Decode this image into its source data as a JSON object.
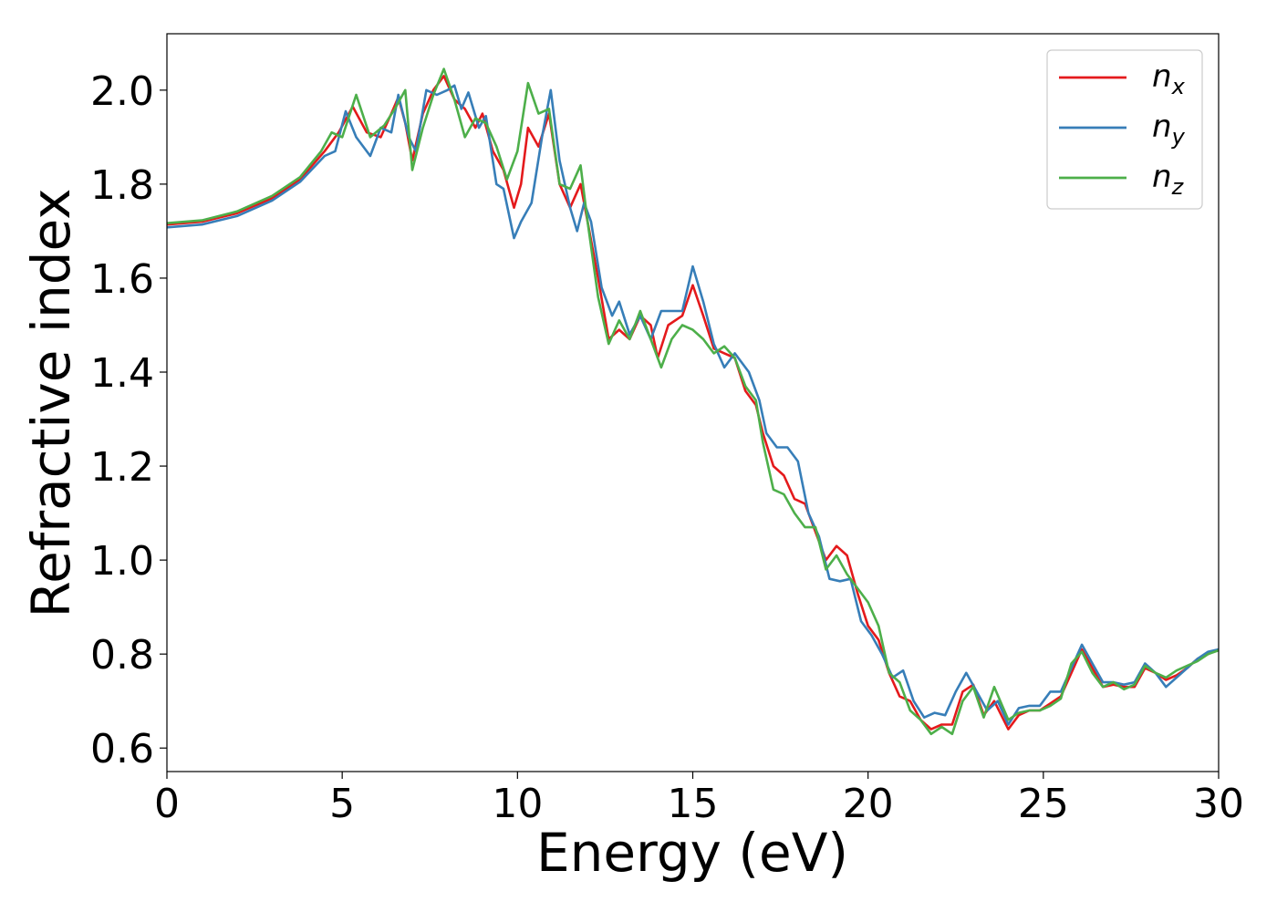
{
  "chart_data": {
    "type": "line",
    "title": "",
    "xlabel": "Energy (eV)",
    "ylabel": "Refractive index",
    "xlim": [
      0,
      30
    ],
    "ylim": [
      0.55,
      2.12
    ],
    "xticks": [
      0,
      5,
      10,
      15,
      20,
      25,
      30
    ],
    "yticks": [
      0.6,
      0.8,
      1.0,
      1.2,
      1.4,
      1.6,
      1.8,
      2.0
    ],
    "ytick_labels": [
      "0.6",
      "0.8",
      "1.0",
      "1.2",
      "1.4",
      "1.6",
      "1.8",
      "2.0"
    ],
    "grid": false,
    "legend_position": "top-right",
    "series": [
      {
        "name": "n_x",
        "label_main": "n",
        "label_sub": "x",
        "color": "#e41a1c",
        "points": [
          [
            0,
            1.714
          ],
          [
            1,
            1.72
          ],
          [
            2,
            1.738
          ],
          [
            3,
            1.77
          ],
          [
            3.8,
            1.81
          ],
          [
            4.5,
            1.87
          ],
          [
            4.9,
            1.91
          ],
          [
            5.3,
            1.965
          ],
          [
            5.7,
            1.91
          ],
          [
            6.1,
            1.9
          ],
          [
            6.4,
            1.95
          ],
          [
            6.6,
            1.985
          ],
          [
            6.8,
            1.93
          ],
          [
            7.0,
            1.85
          ],
          [
            7.3,
            1.95
          ],
          [
            7.6,
            2.0
          ],
          [
            7.9,
            2.03
          ],
          [
            8.2,
            1.98
          ],
          [
            8.5,
            1.96
          ],
          [
            8.8,
            1.92
          ],
          [
            9.0,
            1.95
          ],
          [
            9.3,
            1.87
          ],
          [
            9.6,
            1.83
          ],
          [
            9.9,
            1.75
          ],
          [
            10.1,
            1.8
          ],
          [
            10.3,
            1.92
          ],
          [
            10.6,
            1.88
          ],
          [
            10.9,
            1.95
          ],
          [
            11.2,
            1.8
          ],
          [
            11.5,
            1.75
          ],
          [
            11.8,
            1.8
          ],
          [
            12.0,
            1.72
          ],
          [
            12.3,
            1.6
          ],
          [
            12.6,
            1.47
          ],
          [
            12.9,
            1.49
          ],
          [
            13.2,
            1.47
          ],
          [
            13.5,
            1.52
          ],
          [
            13.8,
            1.5
          ],
          [
            14.0,
            1.43
          ],
          [
            14.3,
            1.5
          ],
          [
            14.7,
            1.52
          ],
          [
            15.0,
            1.585
          ],
          [
            15.3,
            1.52
          ],
          [
            15.6,
            1.45
          ],
          [
            15.9,
            1.44
          ],
          [
            16.2,
            1.43
          ],
          [
            16.5,
            1.36
          ],
          [
            16.8,
            1.33
          ],
          [
            17.0,
            1.27
          ],
          [
            17.3,
            1.2
          ],
          [
            17.6,
            1.18
          ],
          [
            17.9,
            1.13
          ],
          [
            18.2,
            1.12
          ],
          [
            18.5,
            1.06
          ],
          [
            18.8,
            1.0
          ],
          [
            19.1,
            1.03
          ],
          [
            19.4,
            1.01
          ],
          [
            19.7,
            0.93
          ],
          [
            20.0,
            0.86
          ],
          [
            20.3,
            0.83
          ],
          [
            20.6,
            0.76
          ],
          [
            20.9,
            0.71
          ],
          [
            21.2,
            0.7
          ],
          [
            21.5,
            0.66
          ],
          [
            21.8,
            0.64
          ],
          [
            22.1,
            0.65
          ],
          [
            22.4,
            0.65
          ],
          [
            22.7,
            0.72
          ],
          [
            23.0,
            0.735
          ],
          [
            23.3,
            0.67
          ],
          [
            23.6,
            0.7
          ],
          [
            24.0,
            0.64
          ],
          [
            24.3,
            0.67
          ],
          [
            24.6,
            0.68
          ],
          [
            24.9,
            0.68
          ],
          [
            25.2,
            0.695
          ],
          [
            25.5,
            0.71
          ],
          [
            25.8,
            0.76
          ],
          [
            26.1,
            0.81
          ],
          [
            26.4,
            0.77
          ],
          [
            26.7,
            0.73
          ],
          [
            27.0,
            0.735
          ],
          [
            27.3,
            0.73
          ],
          [
            27.6,
            0.73
          ],
          [
            27.9,
            0.77
          ],
          [
            28.2,
            0.76
          ],
          [
            28.5,
            0.745
          ],
          [
            28.8,
            0.755
          ],
          [
            29.1,
            0.77
          ],
          [
            29.4,
            0.79
          ],
          [
            29.7,
            0.8
          ],
          [
            30,
            0.81
          ]
        ]
      },
      {
        "name": "n_y",
        "label_main": "n",
        "label_sub": "y",
        "color": "#377eb8",
        "points": [
          [
            0,
            1.708
          ],
          [
            1,
            1.714
          ],
          [
            2,
            1.732
          ],
          [
            3,
            1.765
          ],
          [
            3.8,
            1.805
          ],
          [
            4.5,
            1.86
          ],
          [
            4.8,
            1.87
          ],
          [
            5.1,
            1.955
          ],
          [
            5.4,
            1.9
          ],
          [
            5.8,
            1.86
          ],
          [
            6.1,
            1.92
          ],
          [
            6.4,
            1.91
          ],
          [
            6.6,
            1.99
          ],
          [
            6.9,
            1.9
          ],
          [
            7.1,
            1.87
          ],
          [
            7.4,
            2.0
          ],
          [
            7.7,
            1.99
          ],
          [
            8.0,
            2.0
          ],
          [
            8.2,
            2.01
          ],
          [
            8.4,
            1.96
          ],
          [
            8.6,
            1.995
          ],
          [
            8.9,
            1.92
          ],
          [
            9.1,
            1.945
          ],
          [
            9.4,
            1.8
          ],
          [
            9.6,
            1.79
          ],
          [
            9.9,
            1.685
          ],
          [
            10.1,
            1.72
          ],
          [
            10.4,
            1.76
          ],
          [
            10.7,
            1.9
          ],
          [
            10.95,
            2.0
          ],
          [
            11.2,
            1.85
          ],
          [
            11.5,
            1.75
          ],
          [
            11.7,
            1.7
          ],
          [
            11.9,
            1.76
          ],
          [
            12.1,
            1.72
          ],
          [
            12.4,
            1.58
          ],
          [
            12.7,
            1.52
          ],
          [
            12.9,
            1.55
          ],
          [
            13.2,
            1.48
          ],
          [
            13.5,
            1.52
          ],
          [
            13.8,
            1.47
          ],
          [
            14.1,
            1.53
          ],
          [
            14.4,
            1.53
          ],
          [
            14.7,
            1.53
          ],
          [
            15.0,
            1.625
          ],
          [
            15.3,
            1.55
          ],
          [
            15.6,
            1.46
          ],
          [
            15.9,
            1.41
          ],
          [
            16.2,
            1.44
          ],
          [
            16.6,
            1.4
          ],
          [
            16.9,
            1.34
          ],
          [
            17.1,
            1.27
          ],
          [
            17.4,
            1.24
          ],
          [
            17.7,
            1.24
          ],
          [
            18.0,
            1.21
          ],
          [
            18.3,
            1.1
          ],
          [
            18.6,
            1.05
          ],
          [
            18.9,
            0.96
          ],
          [
            19.2,
            0.955
          ],
          [
            19.5,
            0.96
          ],
          [
            19.8,
            0.87
          ],
          [
            20.1,
            0.84
          ],
          [
            20.4,
            0.8
          ],
          [
            20.7,
            0.75
          ],
          [
            21.0,
            0.765
          ],
          [
            21.3,
            0.7
          ],
          [
            21.6,
            0.665
          ],
          [
            21.9,
            0.675
          ],
          [
            22.2,
            0.67
          ],
          [
            22.5,
            0.72
          ],
          [
            22.8,
            0.76
          ],
          [
            23.1,
            0.72
          ],
          [
            23.4,
            0.68
          ],
          [
            23.7,
            0.7
          ],
          [
            24.0,
            0.65
          ],
          [
            24.3,
            0.685
          ],
          [
            24.6,
            0.69
          ],
          [
            24.9,
            0.69
          ],
          [
            25.2,
            0.72
          ],
          [
            25.5,
            0.72
          ],
          [
            25.8,
            0.77
          ],
          [
            26.1,
            0.82
          ],
          [
            26.4,
            0.78
          ],
          [
            26.7,
            0.74
          ],
          [
            27.0,
            0.74
          ],
          [
            27.3,
            0.735
          ],
          [
            27.6,
            0.74
          ],
          [
            27.9,
            0.78
          ],
          [
            28.2,
            0.76
          ],
          [
            28.5,
            0.73
          ],
          [
            28.8,
            0.75
          ],
          [
            29.1,
            0.77
          ],
          [
            29.4,
            0.79
          ],
          [
            29.7,
            0.805
          ],
          [
            30,
            0.81
          ]
        ]
      },
      {
        "name": "n_z",
        "label_main": "n",
        "label_sub": "z",
        "color": "#4daf4a",
        "points": [
          [
            0,
            1.717
          ],
          [
            1,
            1.723
          ],
          [
            2,
            1.742
          ],
          [
            3,
            1.775
          ],
          [
            3.8,
            1.815
          ],
          [
            4.4,
            1.87
          ],
          [
            4.7,
            1.91
          ],
          [
            5.0,
            1.9
          ],
          [
            5.4,
            1.99
          ],
          [
            5.8,
            1.9
          ],
          [
            6.2,
            1.925
          ],
          [
            6.5,
            1.96
          ],
          [
            6.8,
            2.0
          ],
          [
            7.0,
            1.83
          ],
          [
            7.3,
            1.92
          ],
          [
            7.6,
            1.99
          ],
          [
            7.9,
            2.045
          ],
          [
            8.2,
            1.98
          ],
          [
            8.5,
            1.9
          ],
          [
            8.8,
            1.94
          ],
          [
            9.1,
            1.93
          ],
          [
            9.4,
            1.88
          ],
          [
            9.7,
            1.81
          ],
          [
            10.0,
            1.87
          ],
          [
            10.3,
            2.015
          ],
          [
            10.6,
            1.95
          ],
          [
            10.9,
            1.96
          ],
          [
            11.2,
            1.8
          ],
          [
            11.5,
            1.79
          ],
          [
            11.8,
            1.84
          ],
          [
            12.0,
            1.72
          ],
          [
            12.3,
            1.56
          ],
          [
            12.6,
            1.46
          ],
          [
            12.9,
            1.51
          ],
          [
            13.2,
            1.47
          ],
          [
            13.5,
            1.53
          ],
          [
            13.8,
            1.47
          ],
          [
            14.1,
            1.41
          ],
          [
            14.4,
            1.47
          ],
          [
            14.7,
            1.5
          ],
          [
            15.0,
            1.49
          ],
          [
            15.3,
            1.47
          ],
          [
            15.6,
            1.44
          ],
          [
            15.9,
            1.455
          ],
          [
            16.2,
            1.43
          ],
          [
            16.5,
            1.37
          ],
          [
            16.8,
            1.34
          ],
          [
            17.0,
            1.25
          ],
          [
            17.3,
            1.15
          ],
          [
            17.6,
            1.14
          ],
          [
            17.9,
            1.1
          ],
          [
            18.2,
            1.07
          ],
          [
            18.5,
            1.07
          ],
          [
            18.8,
            0.98
          ],
          [
            19.1,
            1.01
          ],
          [
            19.4,
            0.97
          ],
          [
            19.7,
            0.94
          ],
          [
            20.0,
            0.91
          ],
          [
            20.3,
            0.86
          ],
          [
            20.6,
            0.76
          ],
          [
            20.9,
            0.74
          ],
          [
            21.2,
            0.68
          ],
          [
            21.5,
            0.66
          ],
          [
            21.8,
            0.63
          ],
          [
            22.1,
            0.645
          ],
          [
            22.4,
            0.63
          ],
          [
            22.7,
            0.7
          ],
          [
            23.0,
            0.73
          ],
          [
            23.3,
            0.665
          ],
          [
            23.6,
            0.73
          ],
          [
            24.0,
            0.66
          ],
          [
            24.3,
            0.675
          ],
          [
            24.6,
            0.68
          ],
          [
            24.9,
            0.68
          ],
          [
            25.2,
            0.69
          ],
          [
            25.5,
            0.705
          ],
          [
            25.8,
            0.78
          ],
          [
            26.1,
            0.805
          ],
          [
            26.4,
            0.76
          ],
          [
            26.7,
            0.73
          ],
          [
            27.0,
            0.74
          ],
          [
            27.3,
            0.725
          ],
          [
            27.6,
            0.735
          ],
          [
            27.9,
            0.775
          ],
          [
            28.2,
            0.76
          ],
          [
            28.5,
            0.75
          ],
          [
            28.8,
            0.765
          ],
          [
            29.1,
            0.775
          ],
          [
            29.4,
            0.785
          ],
          [
            29.7,
            0.8
          ],
          [
            30,
            0.808
          ]
        ]
      }
    ]
  }
}
